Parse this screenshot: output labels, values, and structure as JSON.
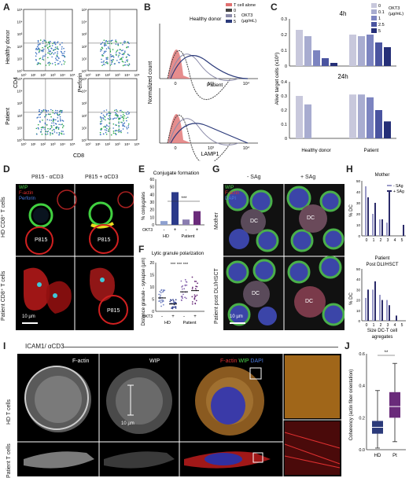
{
  "panels": {
    "A": "A",
    "B": "B",
    "C": "C",
    "D": "D",
    "E": "E",
    "F": "F",
    "G": "G",
    "H": "H",
    "I": "I",
    "J": "J"
  },
  "panelA": {
    "rows": [
      "Healthy donor",
      "Patient"
    ],
    "ylabels": [
      "CD4",
      "Perforin"
    ],
    "xlabel": "CD8",
    "ticks": [
      "10⁰",
      "10¹",
      "10²",
      "10³",
      "10⁴",
      "10⁵"
    ]
  },
  "panelB": {
    "title_top": "Healthy donor",
    "title_bottom": "Patient",
    "ylabel": "Normalized count",
    "xlabel": "LAMP1",
    "xticks": [
      "0",
      "10³",
      "10⁴"
    ],
    "legend": [
      {
        "label": "T cell alone",
        "color": "#e07070"
      },
      {
        "label": "0",
        "color": "#444444"
      },
      {
        "label": "1",
        "color": "#8a8aa8"
      },
      {
        "label": "5",
        "color": "#2b3a7a"
      }
    ],
    "legend_unit": "OKT3",
    "legend_unit2": "(µg/mL)"
  },
  "chart_data": [
    {
      "type": "bar",
      "title": "4h",
      "ylabel": "Alive target cells (x10⁶)",
      "categories": [
        "Healthy donor",
        "Patient"
      ],
      "legend_title": "OKT3 (µg/mL)",
      "series": [
        {
          "name": "0",
          "values": [
            0.23,
            0.2
          ]
        },
        {
          "name": "0.1",
          "values": [
            0.19,
            0.19
          ]
        },
        {
          "name": "1",
          "values": [
            0.1,
            0.2
          ]
        },
        {
          "name": "2.5",
          "values": [
            0.05,
            0.15
          ]
        },
        {
          "name": "5",
          "values": [
            0.02,
            0.12
          ]
        }
      ],
      "ylim": [
        0,
        0.3
      ],
      "yticks": [
        "0.3",
        "0.2",
        "0.1",
        "0"
      ]
    },
    {
      "type": "bar",
      "title": "24h",
      "categories": [
        "Healthy donor",
        "Patient"
      ],
      "series": [
        {
          "name": "0",
          "values": [
            0.3,
            0.31
          ]
        },
        {
          "name": "0.1",
          "values": [
            0.24,
            0.31
          ]
        },
        {
          "name": "1",
          "values": [
            0,
            0.29
          ]
        },
        {
          "name": "2.5",
          "values": [
            0,
            0.2
          ]
        },
        {
          "name": "5",
          "values": [
            0,
            0.12
          ]
        }
      ],
      "ylim": [
        0,
        0.4
      ],
      "yticks": [
        "0.4",
        "0.3",
        "0.2",
        "0.1",
        "0"
      ]
    },
    {
      "type": "bar",
      "title": "Conjugate formation",
      "ylabel": "% conjugates",
      "categories": [
        "HD -",
        "HD +",
        "Patient -",
        "Patient +"
      ],
      "values": [
        5,
        43,
        7,
        18
      ],
      "colors": [
        "#8ea0cf",
        "#2b3a8a",
        "#8a7db0",
        "#6a2b7a"
      ],
      "ylim": [
        0,
        60
      ],
      "yticks": [
        "60",
        "50",
        "40",
        "30",
        "20",
        "10",
        "0"
      ],
      "xrow_label": "OKT3",
      "xrow_values": [
        "-",
        "+",
        "-",
        "+"
      ],
      "groups": [
        "HD",
        "Patient"
      ],
      "annotation": "***"
    },
    {
      "type": "scatter",
      "title": "Lytic granule polarization",
      "ylabel": "Distance granule - synapse (µm)",
      "categories": [
        "HD -",
        "HD +",
        "Patient -",
        "Patient +"
      ],
      "medians": [
        5.5,
        3,
        8,
        8.5
      ],
      "ylim": [
        0,
        20
      ],
      "yticks": [
        "20",
        "15",
        "10",
        "5",
        "0"
      ],
      "xrow_label": "OKT3",
      "xrow_values": [
        "-",
        "+",
        "-",
        "+"
      ],
      "groups": [
        "HD",
        "Patient"
      ],
      "annotations": [
        "***",
        "***",
        "***"
      ]
    },
    {
      "type": "bar",
      "title": "Mother",
      "ylabel": "% DC",
      "categories": [
        "0",
        "1",
        "2",
        "3",
        "4",
        "5"
      ],
      "series": [
        {
          "name": "- SAg",
          "values": [
            45,
            20,
            15,
            12,
            0,
            0
          ]
        },
        {
          "name": "+ SAg",
          "values": [
            35,
            30,
            15,
            40,
            0,
            10
          ]
        }
      ],
      "ylim": [
        0,
        50
      ],
      "yticks": [
        "50",
        "40",
        "30",
        "20",
        "10",
        "0"
      ]
    },
    {
      "type": "bar",
      "title": "Patient Post DLI/HSCT",
      "ylabel": "% DC",
      "xlabel": "Size DC-T cell agregates",
      "categories": [
        "0",
        "1",
        "2",
        "3",
        "4",
        "5"
      ],
      "series": [
        {
          "name": "- SAg",
          "values": [
            22,
            30,
            25,
            20,
            0,
            0
          ]
        },
        {
          "name": "+ SAg",
          "values": [
            30,
            38,
            20,
            15,
            5,
            0
          ]
        }
      ],
      "ylim": [
        0,
        50
      ],
      "yticks": [
        "50",
        "40",
        "30",
        "20",
        "10",
        "0"
      ]
    },
    {
      "type": "box",
      "ylabel": "Coherency (actin fiber orientation)",
      "categories": [
        "HD",
        "Pt"
      ],
      "boxes": [
        {
          "min": 0.01,
          "q1": 0.1,
          "median": 0.14,
          "q3": 0.18,
          "max": 0.37,
          "color": "#2b3a7a"
        },
        {
          "min": 0.05,
          "q1": 0.2,
          "median": 0.27,
          "q3": 0.36,
          "max": 0.54,
          "color": "#6a2b7a"
        }
      ],
      "ylim": [
        0,
        0.6
      ],
      "yticks": [
        "0.6",
        "0.4",
        "0.2",
        "0.0"
      ],
      "annotation": "**"
    }
  ],
  "panelD": {
    "cols": [
      "P815 - αCD3",
      "P815 + αCD3"
    ],
    "rows": [
      "HD CD8⁺ T cells",
      "Patient CD8⁺ T cells"
    ],
    "legend": [
      {
        "label": "WIP",
        "color": "#4cd44c"
      },
      {
        "label": "F-actin",
        "color": "#e03030"
      },
      {
        "label": "Perforin",
        "color": "#4a7ae0"
      }
    ],
    "cell_label": "P815",
    "scale": "10 µm"
  },
  "panelG": {
    "cols": [
      "- SAg",
      "+ SAg"
    ],
    "rows": [
      "Mother",
      "Patient post DLI/HSCT"
    ],
    "legend": [
      {
        "label": "WIP",
        "color": "#4cd44c"
      },
      {
        "label": "F-actin",
        "color": "#e03030"
      },
      {
        "label": "DAPI",
        "color": "#4a7ae0"
      }
    ],
    "cell_label": "DC",
    "scale": "10 µm"
  },
  "panelI": {
    "title": "ICAM1/ αCD3",
    "cols": [
      "F-actin",
      "WIP"
    ],
    "merge_legend": [
      {
        "label": "F-actin",
        "color": "#e03030"
      },
      {
        "label": "WIP",
        "color": "#4cd44c"
      },
      {
        "label": "DAPI",
        "color": "#4a7ae0"
      }
    ],
    "rows": [
      "HD T cells",
      "Patient  T cells"
    ],
    "scale": "10 µm"
  },
  "panelH_legend": [
    {
      "label": "- SAg",
      "color": "#9a9ac8"
    },
    {
      "label": "+ SAg",
      "color": "#2b2b6a"
    }
  ],
  "panelC_legend_title": "OKT3\n(µg/mL)",
  "colors": {
    "c0": "#c8c8dc",
    "c01": "#a8acd0",
    "c1": "#7c84c0",
    "c25": "#4a54a0",
    "c5": "#252f78"
  }
}
